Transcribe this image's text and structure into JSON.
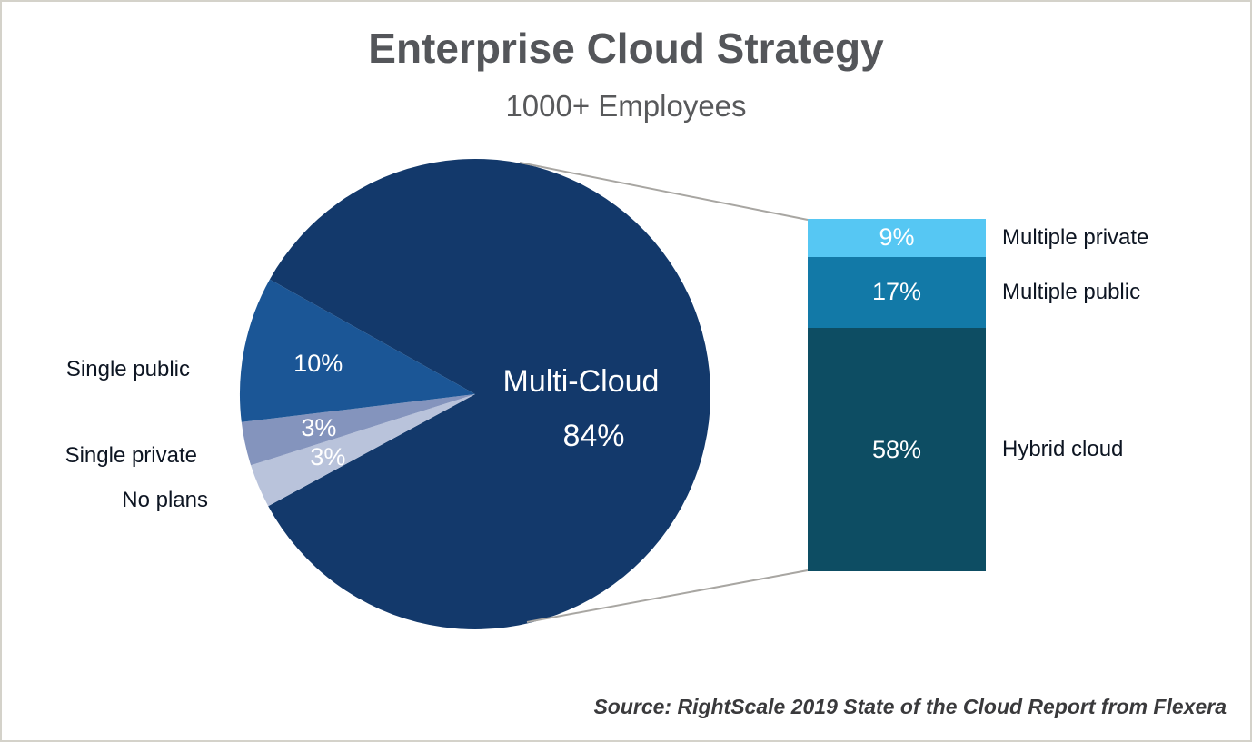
{
  "chart_data": {
    "type": "pie",
    "variant": "bar-of-pie",
    "title": "Enterprise Cloud Strategy",
    "subtitle": "1000+ Employees",
    "source": "Source: RightScale 2019 State of the Cloud Report from Flexera",
    "unit": "%",
    "legend_position": "none",
    "pie": {
      "slices": [
        {
          "label": "Multi-Cloud",
          "value": 84,
          "pct_label": "84%",
          "color": "#13396b",
          "text_color": "#ffffff"
        },
        {
          "label": "No plans",
          "value": 3,
          "pct_label": "3%",
          "color": "#b9c3db",
          "text_color": "#ffffff"
        },
        {
          "label": "Single private",
          "value": 3,
          "pct_label": "3%",
          "color": "#8494bd",
          "text_color": "#ffffff"
        },
        {
          "label": "Single public",
          "value": 10,
          "pct_label": "10%",
          "color": "#1b5696",
          "text_color": "#ffffff"
        }
      ]
    },
    "bar": {
      "represents": "Multi-Cloud",
      "total": 84,
      "segments": [
        {
          "label": "Multiple private",
          "value": 9,
          "pct_label": "9%",
          "color": "#56c7f3"
        },
        {
          "label": "Multiple public",
          "value": 17,
          "pct_label": "17%",
          "color": "#1279a7"
        },
        {
          "label": "Hybrid cloud",
          "value": 58,
          "pct_label": "58%",
          "color": "#0d4d63"
        }
      ]
    },
    "connector_color": "#a8a6a2"
  }
}
